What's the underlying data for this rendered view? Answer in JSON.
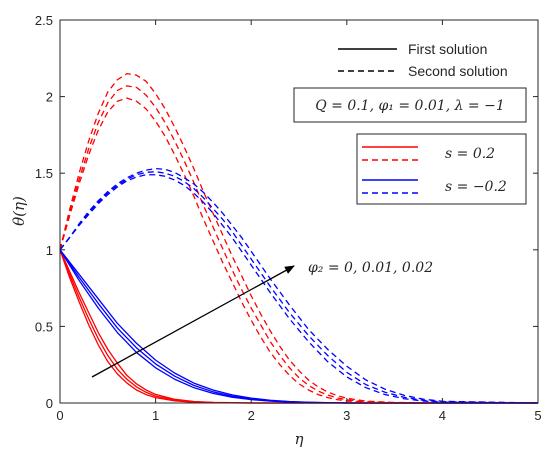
{
  "chart_data": {
    "type": "line",
    "xlabel": "η",
    "ylabel": "θ(η)",
    "xlim": [
      0,
      5
    ],
    "ylim": [
      0,
      2.5
    ],
    "xticks": [
      "0",
      "1",
      "2",
      "3",
      "4",
      "5"
    ],
    "yticks": [
      "0",
      "0.5",
      "1",
      "1.5",
      "2",
      "2.5"
    ],
    "grid": false,
    "legend_style": {
      "first_label": "First solution",
      "second_label": "Second solution",
      "position": "top-right"
    },
    "params_box": "Q = 0.1, φ₁ = 0.01, λ = −1",
    "legend_s": [
      {
        "label": "s = 0.2",
        "color": "#ff0000"
      },
      {
        "label": "s = −0.2",
        "color": "#0000ff"
      }
    ],
    "annotation": "φ₂ = 0, 0.01, 0.02",
    "series": [
      {
        "color": "#ff0000",
        "style": "solid",
        "x": [
          0,
          0.1,
          0.2,
          0.3,
          0.4,
          0.5,
          0.6,
          0.7,
          0.8,
          0.9,
          1.0,
          1.2,
          1.4,
          1.6,
          1.8,
          2.0,
          2.5,
          5
        ],
        "y": [
          1,
          0.82,
          0.66,
          0.51,
          0.38,
          0.27,
          0.19,
          0.13,
          0.085,
          0.055,
          0.035,
          0.014,
          0.005,
          0.002,
          0.001,
          0,
          0,
          0
        ]
      },
      {
        "color": "#ff0000",
        "style": "solid",
        "x": [
          0,
          0.1,
          0.2,
          0.3,
          0.4,
          0.5,
          0.6,
          0.7,
          0.8,
          0.9,
          1.0,
          1.2,
          1.4,
          1.6,
          1.8,
          2.0,
          2.5,
          5
        ],
        "y": [
          1,
          0.84,
          0.69,
          0.55,
          0.42,
          0.31,
          0.22,
          0.155,
          0.105,
          0.07,
          0.045,
          0.019,
          0.008,
          0.003,
          0.001,
          0,
          0,
          0
        ]
      },
      {
        "color": "#ff0000",
        "style": "solid",
        "x": [
          0,
          0.1,
          0.2,
          0.3,
          0.4,
          0.5,
          0.6,
          0.7,
          0.8,
          0.9,
          1.0,
          1.2,
          1.4,
          1.6,
          1.8,
          2.0,
          2.5,
          5
        ],
        "y": [
          1,
          0.86,
          0.72,
          0.59,
          0.46,
          0.35,
          0.26,
          0.18,
          0.125,
          0.085,
          0.056,
          0.024,
          0.01,
          0.004,
          0.002,
          0,
          0,
          0
        ]
      },
      {
        "color": "#0000ff",
        "style": "solid",
        "x": [
          0,
          0.2,
          0.4,
          0.6,
          0.8,
          1.0,
          1.2,
          1.4,
          1.6,
          1.8,
          2.0,
          2.2,
          2.4,
          2.6,
          3.0,
          5
        ],
        "y": [
          1,
          0.8,
          0.62,
          0.46,
          0.33,
          0.23,
          0.155,
          0.1,
          0.063,
          0.038,
          0.022,
          0.012,
          0.006,
          0.003,
          0,
          0
        ]
      },
      {
        "color": "#0000ff",
        "style": "solid",
        "x": [
          0,
          0.2,
          0.4,
          0.6,
          0.8,
          1.0,
          1.2,
          1.4,
          1.6,
          1.8,
          2.0,
          2.2,
          2.4,
          2.6,
          3.0,
          5
        ],
        "y": [
          1,
          0.82,
          0.65,
          0.49,
          0.36,
          0.255,
          0.175,
          0.115,
          0.073,
          0.045,
          0.027,
          0.015,
          0.008,
          0.004,
          0,
          0
        ]
      },
      {
        "color": "#0000ff",
        "style": "solid",
        "x": [
          0,
          0.2,
          0.4,
          0.6,
          0.8,
          1.0,
          1.2,
          1.4,
          1.6,
          1.8,
          2.0,
          2.2,
          2.4,
          2.6,
          3.0,
          5
        ],
        "y": [
          1,
          0.84,
          0.68,
          0.52,
          0.39,
          0.28,
          0.195,
          0.13,
          0.085,
          0.053,
          0.032,
          0.018,
          0.01,
          0.005,
          0,
          0
        ]
      },
      {
        "color": "#ff0000",
        "style": "dashed",
        "x": [
          0,
          0.1,
          0.2,
          0.3,
          0.4,
          0.5,
          0.6,
          0.7,
          0.8,
          0.9,
          1.0,
          1.1,
          1.2,
          1.3,
          1.4,
          1.5,
          1.6,
          1.7,
          1.8,
          1.9,
          2.0,
          2.1,
          2.2,
          2.3,
          2.4,
          2.5,
          2.6,
          2.7,
          2.8,
          2.9,
          3.0,
          3.2,
          3.5,
          5
        ],
        "y": [
          1,
          1.22,
          1.43,
          1.62,
          1.78,
          1.9,
          1.97,
          1.99,
          1.97,
          1.92,
          1.84,
          1.74,
          1.62,
          1.49,
          1.35,
          1.2,
          1.06,
          0.92,
          0.79,
          0.66,
          0.54,
          0.43,
          0.33,
          0.25,
          0.18,
          0.125,
          0.085,
          0.055,
          0.035,
          0.022,
          0.013,
          0.004,
          0.001,
          0
        ]
      },
      {
        "color": "#ff0000",
        "style": "dashed",
        "x": [
          0,
          0.1,
          0.2,
          0.3,
          0.4,
          0.5,
          0.6,
          0.7,
          0.8,
          0.9,
          1.0,
          1.1,
          1.2,
          1.3,
          1.4,
          1.5,
          1.6,
          1.7,
          1.8,
          1.9,
          2.0,
          2.1,
          2.2,
          2.3,
          2.4,
          2.5,
          2.6,
          2.7,
          2.8,
          2.9,
          3.0,
          3.2,
          3.5,
          5
        ],
        "y": [
          1,
          1.24,
          1.46,
          1.66,
          1.83,
          1.96,
          2.04,
          2.07,
          2.06,
          2.01,
          1.93,
          1.83,
          1.71,
          1.58,
          1.44,
          1.29,
          1.15,
          1.01,
          0.87,
          0.74,
          0.62,
          0.51,
          0.4,
          0.31,
          0.23,
          0.165,
          0.115,
          0.078,
          0.052,
          0.033,
          0.021,
          0.008,
          0.002,
          0
        ]
      },
      {
        "color": "#ff0000",
        "style": "dashed",
        "x": [
          0,
          0.1,
          0.2,
          0.3,
          0.4,
          0.5,
          0.6,
          0.7,
          0.8,
          0.9,
          1.0,
          1.1,
          1.2,
          1.3,
          1.4,
          1.5,
          1.6,
          1.7,
          1.8,
          1.9,
          2.0,
          2.1,
          2.2,
          2.3,
          2.4,
          2.5,
          2.6,
          2.7,
          2.8,
          2.9,
          3.0,
          3.2,
          3.5,
          5
        ],
        "y": [
          1,
          1.26,
          1.5,
          1.71,
          1.89,
          2.03,
          2.11,
          2.15,
          2.14,
          2.1,
          2.02,
          1.92,
          1.8,
          1.67,
          1.53,
          1.38,
          1.24,
          1.1,
          0.96,
          0.83,
          0.7,
          0.58,
          0.47,
          0.37,
          0.28,
          0.21,
          0.15,
          0.105,
          0.072,
          0.048,
          0.031,
          0.012,
          0.003,
          0
        ]
      },
      {
        "color": "#0000ff",
        "style": "dashed",
        "x": [
          0,
          0.1,
          0.2,
          0.3,
          0.4,
          0.5,
          0.6,
          0.7,
          0.8,
          0.9,
          1.0,
          1.1,
          1.2,
          1.3,
          1.4,
          1.5,
          1.6,
          1.7,
          1.8,
          1.9,
          2.0,
          2.2,
          2.4,
          2.6,
          2.8,
          3.0,
          3.2,
          3.4,
          3.6,
          3.8,
          4.0,
          5
        ],
        "y": [
          1,
          1.08,
          1.16,
          1.23,
          1.3,
          1.36,
          1.41,
          1.45,
          1.475,
          1.49,
          1.49,
          1.48,
          1.455,
          1.42,
          1.37,
          1.31,
          1.24,
          1.16,
          1.08,
          0.99,
          0.9,
          0.72,
          0.55,
          0.4,
          0.27,
          0.17,
          0.1,
          0.055,
          0.028,
          0.013,
          0.005,
          0
        ]
      },
      {
        "color": "#0000ff",
        "style": "dashed",
        "x": [
          0,
          0.1,
          0.2,
          0.3,
          0.4,
          0.5,
          0.6,
          0.7,
          0.8,
          0.9,
          1.0,
          1.1,
          1.2,
          1.3,
          1.4,
          1.5,
          1.6,
          1.7,
          1.8,
          1.9,
          2.0,
          2.2,
          2.4,
          2.6,
          2.8,
          3.0,
          3.2,
          3.4,
          3.6,
          3.8,
          4.0,
          5
        ],
        "y": [
          1,
          1.08,
          1.16,
          1.24,
          1.31,
          1.37,
          1.42,
          1.46,
          1.49,
          1.505,
          1.51,
          1.5,
          1.48,
          1.445,
          1.4,
          1.34,
          1.27,
          1.2,
          1.12,
          1.03,
          0.94,
          0.76,
          0.59,
          0.44,
          0.31,
          0.2,
          0.12,
          0.07,
          0.037,
          0.018,
          0.008,
          0
        ]
      },
      {
        "color": "#0000ff",
        "style": "dashed",
        "x": [
          0,
          0.1,
          0.2,
          0.3,
          0.4,
          0.5,
          0.6,
          0.7,
          0.8,
          0.9,
          1.0,
          1.1,
          1.2,
          1.3,
          1.4,
          1.5,
          1.6,
          1.7,
          1.8,
          1.9,
          2.0,
          2.2,
          2.4,
          2.6,
          2.8,
          3.0,
          3.2,
          3.4,
          3.6,
          3.8,
          4.0,
          5
        ],
        "y": [
          1,
          1.08,
          1.17,
          1.25,
          1.32,
          1.38,
          1.43,
          1.47,
          1.5,
          1.52,
          1.53,
          1.525,
          1.505,
          1.47,
          1.43,
          1.375,
          1.31,
          1.24,
          1.16,
          1.08,
          0.99,
          0.81,
          0.64,
          0.48,
          0.35,
          0.24,
          0.15,
          0.09,
          0.05,
          0.025,
          0.011,
          0
        ]
      }
    ]
  }
}
